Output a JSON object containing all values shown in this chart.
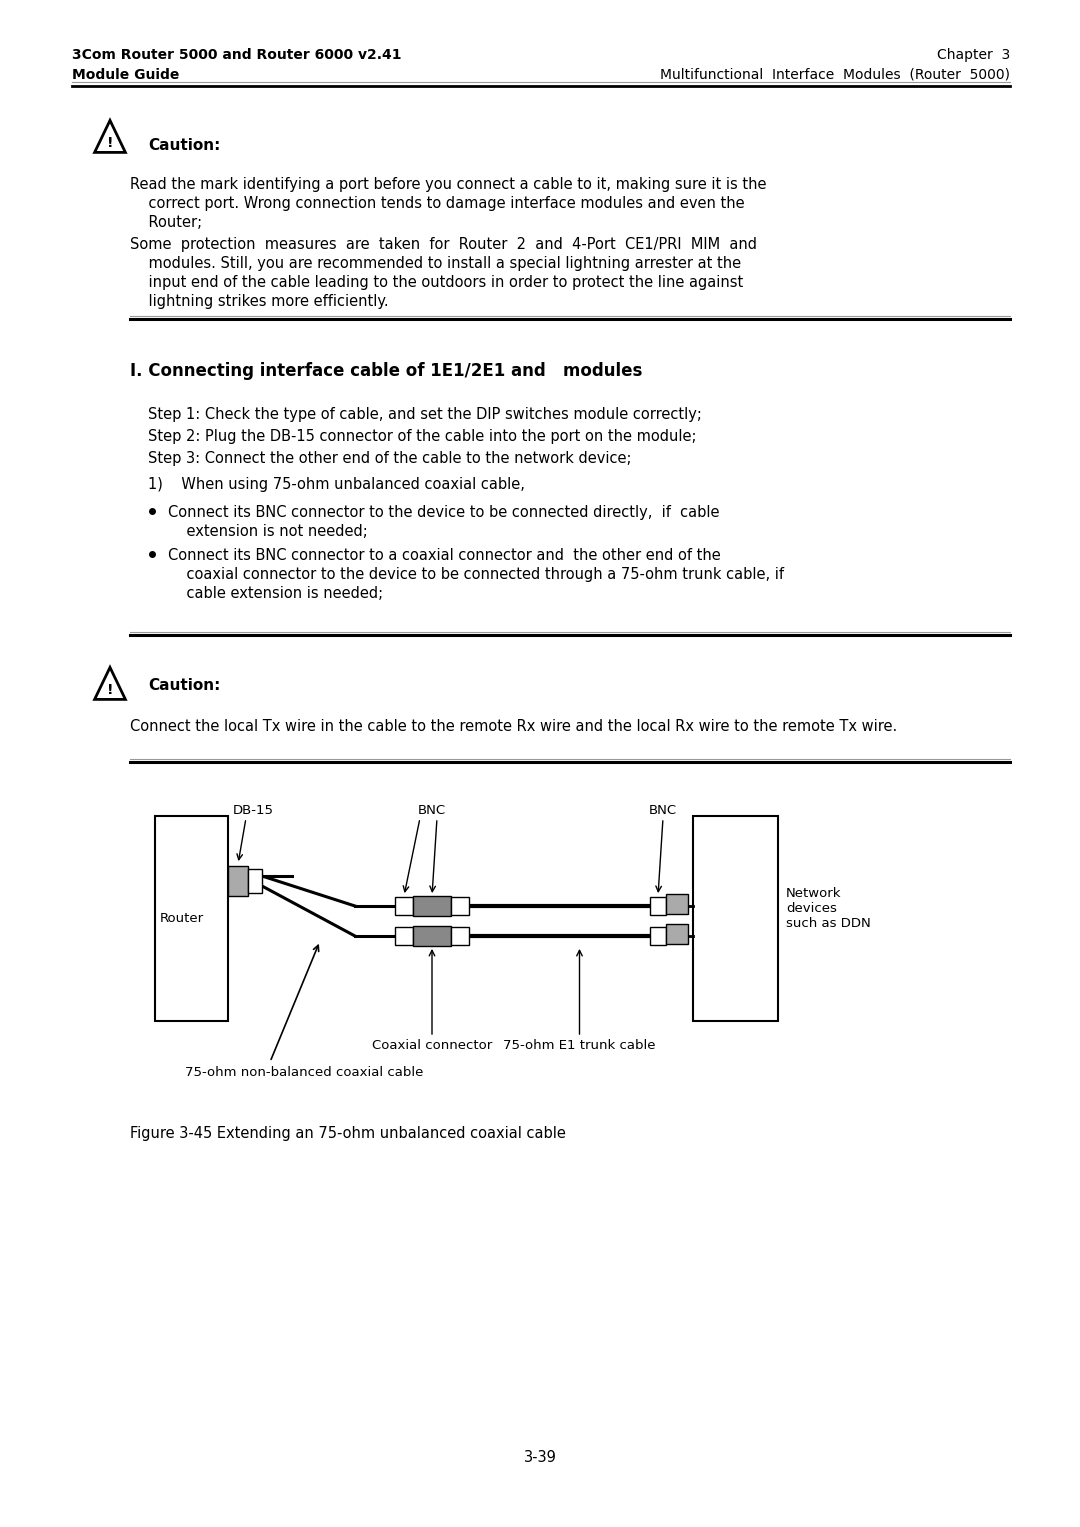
{
  "bg_color": "#ffffff",
  "header_left_line1": "3Com Router 5000 and Router 6000 v2.41",
  "header_left_line2": "Module Guide",
  "header_right_line1": "Chapter  3",
  "header_right_line2": "Multifunctional  Interface  Modules  (Router  5000)",
  "caution_title": "Caution:",
  "caution_text1": "Read the mark identifying a port before you connect a cable to it, making sure it is the",
  "caution_text1b": "    correct port. Wrong connection tends to damage interface modules and even the",
  "caution_text1c": "    Router;",
  "caution_text2": "Some  protection  measures  are  taken  for  Router  2  and  4-Port  CE1/PRI  MIM  and",
  "caution_text2b": "    modules. Still, you are recommended to install a special lightning arrester at the",
  "caution_text2c": "    input end of the cable leading to the outdoors in order to protect the line against",
  "caution_text2d": "    lightning strikes more efficiently.",
  "section_title": "I. Connecting interface cable of 1E1/2E1 and   modules",
  "step1": "Step 1: Check the type of cable, and set the DIP switches module correctly;",
  "step2": "Step 2: Plug the DB-15 connector of the cable into the port on the module;",
  "step3": "Step 3: Connect the other end of the cable to the network device;",
  "item1": "1)    When using 75-ohm unbalanced coaxial cable,",
  "bullet1a": "Connect its BNC connector to the device to be connected directly,  if  cable",
  "bullet1b": "    extension is not needed;",
  "bullet2a": "Connect its BNC connector to a coaxial connector and  the other end of the",
  "bullet2b": "    coaxial connector to the device to be connected through a 75-ohm trunk cable, if",
  "bullet2c": "    cable extension is needed;",
  "caution2_title": "Caution:",
  "caution2_text": "Connect the local Tx wire in the cable to the remote Rx wire and the local Rx wire to the remote Tx wire.",
  "fig_caption": "Figure 3-45 Extending an 75-ohm unbalanced coaxial cable",
  "page_num": "3-39",
  "label_db15": "DB-15",
  "label_bnc1": "BNC",
  "label_bnc2": "BNC",
  "label_router": "Router",
  "label_network": "Network\ndevices\nsuch as DDN",
  "label_coax_conn": "Coaxial connector",
  "label_trunk": "75-ohm E1 trunk cable",
  "label_cable": "75-ohm non-balanced coaxial cable"
}
